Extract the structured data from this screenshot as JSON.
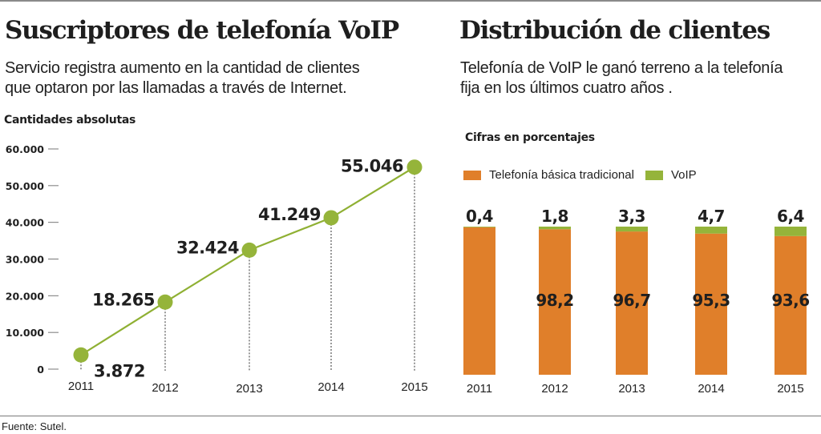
{
  "colors": {
    "line": "#8fb033",
    "point": "#95b43a",
    "traditional": "#e07f2a",
    "voip": "#95b43a",
    "text": "#1f1f1f",
    "axis": "#777777"
  },
  "left": {
    "title": "Suscriptores de telefonía VoIP",
    "subtitle_line1": "Servicio registra aumento en la cantidad de clientes",
    "subtitle_line2": "que optaron por las llamadas a través de Internet.",
    "unit_label": "Cantidades absolutas"
  },
  "right": {
    "title": "Distribución de clientes",
    "subtitle_line1": "Telefonía de VoIP le ganó terreno a la telefonía",
    "subtitle_line2": "fija en los últimos cuatro años .",
    "unit_label": "Cifras en porcentajes",
    "legend": [
      {
        "label": "Telefonía básica tradicional",
        "color_key": "traditional"
      },
      {
        "label": "VoIP",
        "color_key": "voip"
      }
    ]
  },
  "source": "Fuente: Sutel.",
  "chart_data": [
    {
      "type": "line",
      "title": "Suscriptores de telefonía VoIP",
      "ylabel": "Cantidades absolutas",
      "xlabel": "",
      "x": [
        "2011",
        "2012",
        "2013",
        "2014",
        "2015"
      ],
      "values": [
        3872,
        18265,
        32424,
        41249,
        55046
      ],
      "data_labels": [
        "3.872",
        "18.265",
        "32.424",
        "41.249",
        "55.046"
      ],
      "ylim": [
        0,
        60000
      ],
      "yticks": [
        0,
        10000,
        20000,
        30000,
        40000,
        50000,
        60000
      ],
      "ytick_labels": [
        "0",
        "10.000",
        "20.000",
        "30.000",
        "40.000",
        "50.000",
        "60.000"
      ],
      "grid": false,
      "legend": "none"
    },
    {
      "type": "bar",
      "stacked": true,
      "title": "Distribución de clientes",
      "ylabel": "Cifras en porcentajes",
      "categories": [
        "2011",
        "2012",
        "2013",
        "2014",
        "2015"
      ],
      "series": [
        {
          "name": "Telefonía básica tradicional",
          "values": [
            99.6,
            98.2,
            96.7,
            95.3,
            93.6
          ],
          "labels": [
            "",
            "98,2",
            "96,7",
            "95,3",
            "93,6"
          ]
        },
        {
          "name": "VoIP",
          "values": [
            0.4,
            1.8,
            3.3,
            4.7,
            6.4
          ],
          "labels": [
            "0,4",
            "1,8",
            "3,3",
            "4,7",
            "6,4"
          ]
        }
      ],
      "ylim": [
        0,
        100
      ],
      "grid": false,
      "legend": "top-left"
    }
  ]
}
